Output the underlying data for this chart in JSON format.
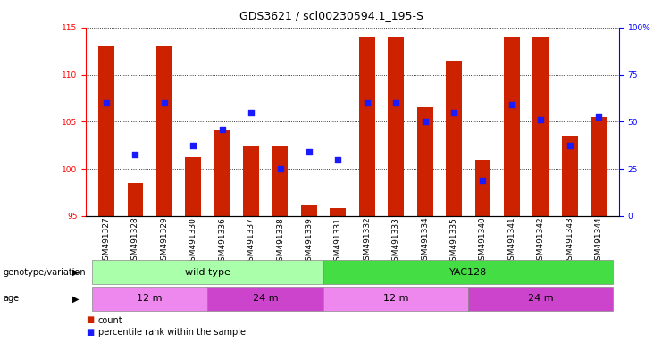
{
  "title": "GDS3621 / scl00230594.1_195-S",
  "samples": [
    "GSM491327",
    "GSM491328",
    "GSM491329",
    "GSM491330",
    "GSM491336",
    "GSM491337",
    "GSM491338",
    "GSM491339",
    "GSM491331",
    "GSM491332",
    "GSM491333",
    "GSM491334",
    "GSM491335",
    "GSM491340",
    "GSM491341",
    "GSM491342",
    "GSM491343",
    "GSM491344"
  ],
  "bar_heights": [
    113.0,
    98.5,
    113.0,
    101.2,
    104.2,
    102.5,
    102.5,
    96.2,
    95.8,
    114.0,
    114.0,
    106.5,
    111.5,
    101.0,
    114.0,
    114.0,
    103.5,
    105.5
  ],
  "blue_y": [
    107.0,
    101.5,
    107.0,
    102.5,
    104.2,
    106.0,
    100.0,
    101.8,
    101.0,
    107.0,
    107.0,
    105.0,
    106.0,
    98.8,
    106.8,
    105.2,
    102.5,
    105.5
  ],
  "ylim_left": [
    95,
    115
  ],
  "ylim_right": [
    0,
    100
  ],
  "yticks_left": [
    95,
    100,
    105,
    110,
    115
  ],
  "yticks_right": [
    0,
    25,
    50,
    75,
    100
  ],
  "ytick_right_labels": [
    "0",
    "25",
    "50",
    "75",
    "100%"
  ],
  "bar_color": "#cc2200",
  "blue_color": "#1a1aff",
  "bar_width": 0.55,
  "blue_size": 18,
  "genotype_groups": [
    {
      "label": "wild type",
      "start": 0,
      "end": 7,
      "color": "#aaffaa"
    },
    {
      "label": "YAC128",
      "start": 8,
      "end": 17,
      "color": "#44dd44"
    }
  ],
  "age_groups": [
    {
      "label": "12 m",
      "start": 0,
      "end": 3,
      "color": "#ee88ee"
    },
    {
      "label": "24 m",
      "start": 4,
      "end": 7,
      "color": "#cc44cc"
    },
    {
      "label": "12 m",
      "start": 8,
      "end": 12,
      "color": "#ee88ee"
    },
    {
      "label": "24 m",
      "start": 13,
      "end": 17,
      "color": "#cc44cc"
    }
  ],
  "genotype_label": "genotype/variation",
  "age_label": "age",
  "legend_count_color": "#cc2200",
  "legend_pct_color": "#1a1aff",
  "title_fontsize": 9,
  "tick_fontsize": 6.5,
  "annot_fontsize": 8
}
